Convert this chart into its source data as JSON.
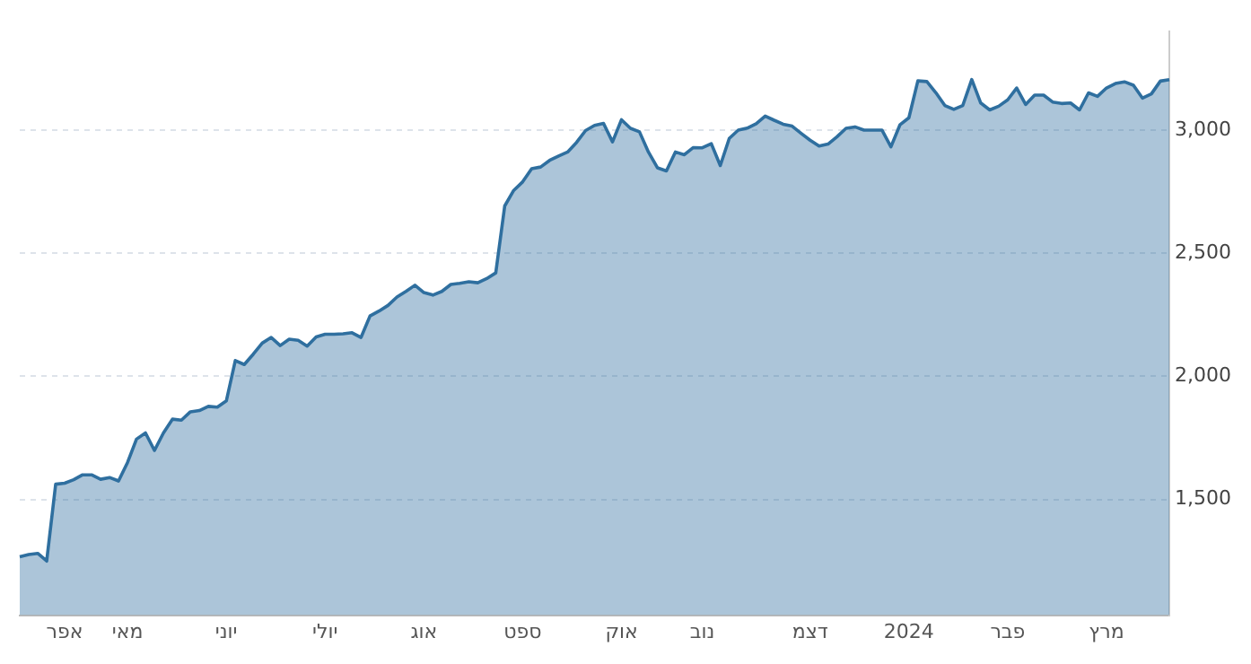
{
  "chart_data": {
    "type": "area",
    "categories": [
      null,
      null,
      null,
      null,
      null,
      "אפר",
      null,
      null,
      null,
      null,
      null,
      null,
      "מאי",
      null,
      null,
      null,
      null,
      null,
      null,
      null,
      null,
      null,
      null,
      "יוני",
      null,
      null,
      null,
      null,
      null,
      null,
      null,
      null,
      null,
      null,
      "יולי",
      null,
      null,
      null,
      null,
      null,
      null,
      null,
      null,
      null,
      null,
      "אוג",
      null,
      null,
      null,
      null,
      null,
      null,
      null,
      null,
      null,
      null,
      "ספט",
      null,
      null,
      null,
      null,
      null,
      null,
      null,
      null,
      null,
      null,
      "אוק",
      null,
      null,
      null,
      null,
      null,
      null,
      null,
      null,
      "נוב",
      null,
      null,
      null,
      null,
      null,
      null,
      null,
      null,
      null,
      null,
      null,
      "דצמ",
      null,
      null,
      null,
      null,
      null,
      null,
      null,
      null,
      null,
      null,
      "2024",
      null,
      null,
      null,
      null,
      null,
      null,
      null,
      null,
      null,
      null,
      "פבר",
      null,
      null,
      null,
      null,
      null,
      null,
      null,
      null,
      null,
      null,
      "מרץ",
      null,
      null,
      null,
      null,
      null,
      null,
      null
    ],
    "series": [
      {
        "color": "#2f6f9f",
        "values": [
          1267,
          1276,
          1281,
          1250,
          1562,
          1566,
          1580,
          1600,
          1600,
          1582,
          1589,
          1575,
          1650,
          1745,
          1770,
          1699,
          1770,
          1826,
          1822,
          1856,
          1861,
          1878,
          1875,
          1900,
          2064,
          2048,
          2090,
          2135,
          2158,
          2125,
          2151,
          2146,
          2123,
          2160,
          2171,
          2171,
          2173,
          2177,
          2158,
          2245,
          2265,
          2288,
          2322,
          2345,
          2370,
          2340,
          2330,
          2345,
          2373,
          2378,
          2384,
          2380,
          2397,
          2420,
          2692,
          2755,
          2790,
          2843,
          2850,
          2877,
          2895,
          2911,
          2950,
          2998,
          3019,
          3027,
          2952,
          3042,
          3007,
          2993,
          2911,
          2847,
          2834,
          2911,
          2900,
          2929,
          2928,
          2945,
          2856,
          2966,
          3000,
          3008,
          3026,
          3057,
          3040,
          3024,
          3016,
          2987,
          2959,
          2935,
          2943,
          2973,
          3007,
          3013,
          3000,
          3000,
          3000,
          2932,
          3021,
          3050,
          3200,
          3197,
          3152,
          3100,
          3084,
          3100,
          3205,
          3110,
          3082,
          3097,
          3123,
          3171,
          3104,
          3142,
          3142,
          3114,
          3108,
          3110,
          3082,
          3151,
          3137,
          3171,
          3189,
          3196,
          3182,
          3130,
          3147,
          3199,
          3205
        ]
      }
    ],
    "ylim": [
      1030,
      3400
    ],
    "yticks": [
      {
        "value": 1500,
        "label": "1,500"
      },
      {
        "value": 2000,
        "label": "2,000"
      },
      {
        "value": 2500,
        "label": "2,500"
      },
      {
        "value": 3000,
        "label": "3,000"
      }
    ],
    "grid": "y",
    "legend": false
  }
}
